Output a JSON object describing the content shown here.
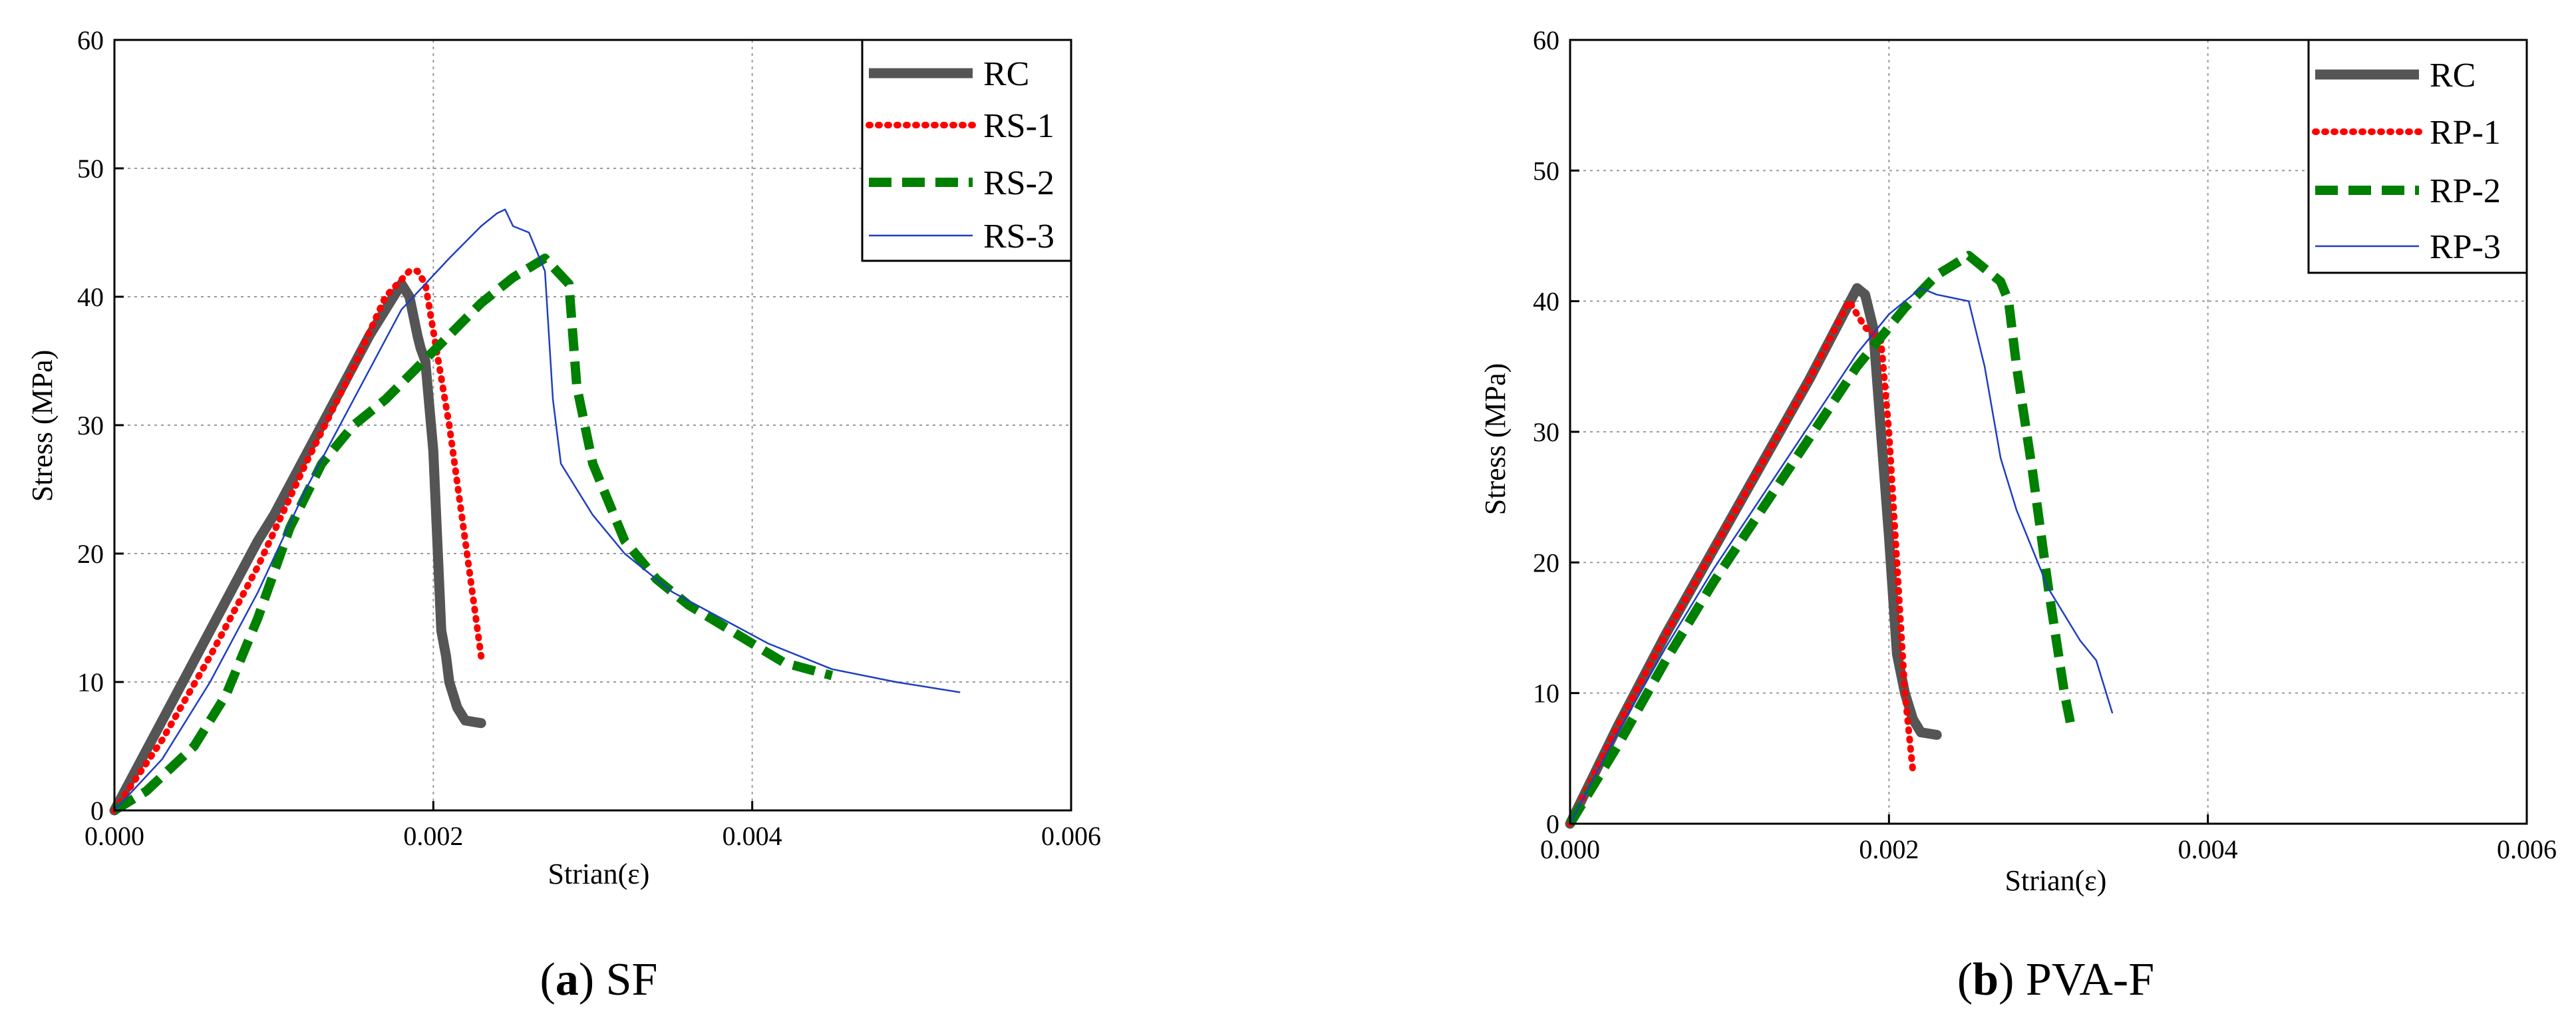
{
  "chart_data": [
    {
      "type": "line",
      "caption_letter": "a",
      "caption_text": "SF",
      "xlabel": "Strian(ε)",
      "ylabel": "Stress (MPa)",
      "xlim": [
        0,
        0.006
      ],
      "ylim": [
        0,
        60
      ],
      "xticks": [
        0,
        0.002,
        0.004,
        0.006
      ],
      "xtick_labels": [
        "0.000",
        "0.002",
        "0.004",
        "0.006"
      ],
      "yticks": [
        0,
        10,
        20,
        30,
        40,
        50,
        60
      ],
      "ytick_labels": [
        "0",
        "10",
        "20",
        "30",
        "40",
        "50",
        "60"
      ],
      "grid": true,
      "legend_position": "top-right",
      "series": [
        {
          "name": "RC",
          "color": "#555555",
          "style": "solid-thick",
          "x": [
            0,
            0.0003,
            0.0006,
            0.0009,
            0.001,
            0.0013,
            0.0016,
            0.0018,
            0.00185,
            0.0019,
            0.00192,
            0.00195,
            0.002,
            0.00205,
            0.00208,
            0.0021,
            0.00215,
            0.0022,
            0.0023
          ],
          "y": [
            0,
            7,
            14,
            21,
            23,
            30,
            37,
            41,
            40,
            37,
            36,
            35,
            28,
            14,
            12,
            10,
            8,
            7,
            6.8
          ]
        },
        {
          "name": "RS-1",
          "color": "#ff0000",
          "style": "dotted",
          "x": [
            0,
            0.0003,
            0.0006,
            0.0009,
            0.0012,
            0.0015,
            0.0017,
            0.00185,
            0.0019,
            0.00195,
            0.0021,
            0.0022,
            0.0023
          ],
          "y": [
            0,
            5.5,
            12,
            19,
            27,
            34.5,
            40,
            42,
            42,
            41,
            30,
            21,
            12
          ]
        },
        {
          "name": "RS-2",
          "color": "#008000",
          "style": "dashed",
          "x": [
            0,
            0.0002,
            0.0005,
            0.0007,
            0.0009,
            0.0011,
            0.0013,
            0.0015,
            0.0017,
            0.0019,
            0.0021,
            0.0023,
            0.0025,
            0.0027,
            0.00285,
            0.0029,
            0.003,
            0.0032,
            0.0034,
            0.0036,
            0.0038,
            0.004,
            0.0042,
            0.0045
          ],
          "y": [
            0,
            1.5,
            5,
            9,
            15,
            22,
            27,
            30,
            32,
            34.5,
            37,
            39.5,
            41.5,
            43,
            41,
            33,
            27,
            21,
            18,
            16,
            14.5,
            13,
            11.5,
            10.5
          ]
        },
        {
          "name": "RS-3",
          "color": "#1f3fbf",
          "style": "solid-thin",
          "x": [
            0,
            0.0003,
            0.0006,
            0.0009,
            0.0012,
            0.0015,
            0.0018,
            0.0021,
            0.0023,
            0.0024,
            0.00245,
            0.0025,
            0.0026,
            0.0027,
            0.00275,
            0.0028,
            0.003,
            0.0032,
            0.0035,
            0.0038,
            0.0041,
            0.0045,
            0.0049,
            0.0053
          ],
          "y": [
            0,
            4,
            10,
            17,
            25,
            32,
            39,
            43,
            45.5,
            46.5,
            46.8,
            45.5,
            45,
            42,
            32,
            27,
            23,
            20,
            17,
            15,
            13,
            11,
            10,
            9.2
          ]
        }
      ]
    },
    {
      "type": "line",
      "caption_letter": "b",
      "caption_text": "PVA-F",
      "xlabel": "Strian(ε)",
      "ylabel": "Stress (MPa)",
      "xlim": [
        0,
        0.006
      ],
      "ylim": [
        0,
        60
      ],
      "xticks": [
        0,
        0.002,
        0.004,
        0.006
      ],
      "xtick_labels": [
        "0.000",
        "0.002",
        "0.004",
        "0.006"
      ],
      "yticks": [
        0,
        10,
        20,
        30,
        40,
        50,
        60
      ],
      "ytick_labels": [
        "0",
        "10",
        "20",
        "30",
        "40",
        "50",
        "60"
      ],
      "grid": true,
      "legend_position": "top-right",
      "series": [
        {
          "name": "RC",
          "color": "#555555",
          "style": "solid-thick",
          "x": [
            0,
            0.0003,
            0.0006,
            0.0009,
            0.0012,
            0.0015,
            0.0018,
            0.00185,
            0.0019,
            0.00195,
            0.002,
            0.00205,
            0.0021,
            0.00215,
            0.0022,
            0.0023
          ],
          "y": [
            0,
            7.5,
            14.5,
            21,
            27.5,
            34,
            41,
            40.5,
            38,
            30,
            22,
            13,
            10,
            8,
            7,
            6.8
          ]
        },
        {
          "name": "RP-1",
          "color": "#ff0000",
          "style": "dotted",
          "x": [
            0,
            0.0003,
            0.0006,
            0.0009,
            0.0012,
            0.0015,
            0.00175,
            0.00185,
            0.00195,
            0.002,
            0.00205,
            0.0021,
            0.00215
          ],
          "y": [
            0,
            7.5,
            14.5,
            21,
            27.5,
            34,
            40,
            38,
            37,
            30,
            20,
            10,
            4
          ]
        },
        {
          "name": "RP-2",
          "color": "#008000",
          "style": "dashed",
          "x": [
            0,
            0.0003,
            0.0006,
            0.0009,
            0.0012,
            0.0015,
            0.0018,
            0.0021,
            0.0023,
            0.0025,
            0.0026,
            0.0027,
            0.00275,
            0.0028,
            0.0029,
            0.003,
            0.0031,
            0.00315
          ],
          "y": [
            0,
            6,
            12.5,
            18.5,
            24,
            29.5,
            35,
            39.5,
            42,
            43.5,
            42.5,
            41.5,
            40,
            35,
            27,
            18,
            10,
            7
          ]
        },
        {
          "name": "RP-3",
          "color": "#1f3fbf",
          "style": "solid-thin",
          "x": [
            0,
            0.0003,
            0.0006,
            0.0009,
            0.0012,
            0.0015,
            0.0018,
            0.002,
            0.0022,
            0.0023,
            0.0025,
            0.0026,
            0.0027,
            0.0028,
            0.003,
            0.0032,
            0.0033,
            0.0034
          ],
          "y": [
            0,
            7,
            13.5,
            19.5,
            25,
            30.5,
            36,
            39,
            41,
            40.5,
            40,
            35,
            28,
            24,
            18,
            14,
            12.5,
            8.5
          ]
        }
      ]
    }
  ]
}
